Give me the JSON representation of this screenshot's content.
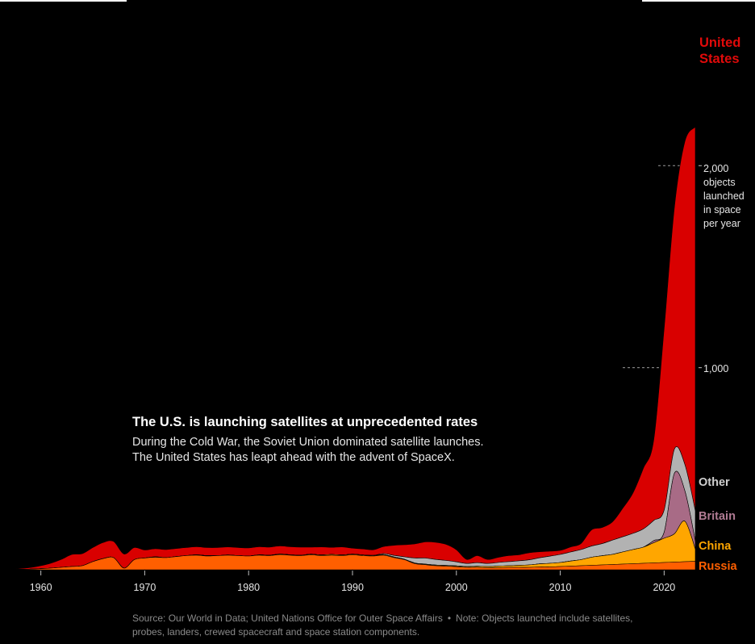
{
  "headline": "The U.S. is launching satellites at unprecedented rates",
  "subheadline": [
    "During the Cold War, the Soviet Union dominated satellite launches.",
    "The United States has leapt ahead with the advent of SpaceX."
  ],
  "source": "Source: Our World in Data; United Nations Office for Outer Space Affairs",
  "note": "Note: Objects launched include satellites, probes, landers, crewed spacecraft and space station components.",
  "colors": {
    "background": "#000000",
    "Russia": "#ff5f00",
    "China": "#ffa600",
    "Britain": "#a86b86",
    "Other": "#b2b2b2",
    "United States": "#d90000",
    "tick": "#bdbdbd",
    "footnote": "#8a8a8a"
  },
  "chart_data": {
    "type": "area",
    "stacking": "stacked streamgraph, baseline at bottom",
    "title": "The U.S. is launching satellites at unprecedented rates",
    "xlabel": "",
    "ylabel": "objects launched in space per year",
    "x_ticks": [
      "1960",
      "1970",
      "1980",
      "1990",
      "2000",
      "2010",
      "2020"
    ],
    "xlim": [
      1957,
      2023
    ],
    "y_ticks": [
      {
        "value": 1000,
        "label": "1,000"
      },
      {
        "value": 2000,
        "label": "2,000",
        "sublabel": [
          "objects",
          "launched",
          "in space",
          "per year"
        ]
      }
    ],
    "ylim": [
      0,
      2700
    ],
    "years": [
      1957,
      1958,
      1959,
      1960,
      1961,
      1962,
      1963,
      1964,
      1965,
      1966,
      1967,
      1968,
      1969,
      1970,
      1971,
      1972,
      1973,
      1974,
      1975,
      1976,
      1977,
      1978,
      1979,
      1980,
      1981,
      1982,
      1983,
      1984,
      1985,
      1986,
      1987,
      1988,
      1989,
      1990,
      1991,
      1992,
      1993,
      1994,
      1995,
      1996,
      1997,
      1998,
      1999,
      2000,
      2001,
      2002,
      2003,
      2004,
      2005,
      2006,
      2007,
      2008,
      2009,
      2010,
      2011,
      2012,
      2013,
      2014,
      2015,
      2016,
      2017,
      2018,
      2019,
      2020,
      2021,
      2022,
      2023
    ],
    "series": [
      {
        "name": "Russia",
        "label": "Russia",
        "values": [
          1,
          2,
          3,
          5,
          8,
          12,
          16,
          20,
          40,
          55,
          60,
          8,
          50,
          58,
          62,
          60,
          65,
          70,
          72,
          68,
          70,
          72,
          70,
          68,
          72,
          70,
          75,
          72,
          70,
          74,
          70,
          72,
          70,
          74,
          70,
          68,
          72,
          60,
          50,
          30,
          25,
          20,
          18,
          15,
          12,
          12,
          10,
          10,
          12,
          12,
          12,
          14,
          14,
          16,
          18,
          20,
          22,
          24,
          26,
          28,
          30,
          32,
          34,
          36,
          38,
          40,
          42
        ]
      },
      {
        "name": "China",
        "label": "China",
        "values": [
          0,
          0,
          0,
          0,
          0,
          0,
          0,
          0,
          0,
          0,
          0,
          0,
          0,
          0,
          2,
          0,
          0,
          0,
          2,
          2,
          0,
          1,
          0,
          0,
          2,
          2,
          3,
          2,
          2,
          3,
          3,
          4,
          3,
          3,
          3,
          3,
          3,
          3,
          2,
          3,
          3,
          3,
          3,
          4,
          4,
          5,
          6,
          8,
          8,
          10,
          12,
          15,
          18,
          20,
          25,
          30,
          40,
          45,
          50,
          60,
          70,
          80,
          100,
          120,
          140,
          200,
          60
        ]
      },
      {
        "name": "Britain",
        "label": "Britain",
        "values": [
          0,
          0,
          0,
          0,
          0,
          0,
          0,
          0,
          0,
          0,
          0,
          0,
          0,
          0,
          0,
          0,
          0,
          0,
          0,
          0,
          0,
          0,
          0,
          0,
          0,
          0,
          0,
          0,
          0,
          0,
          0,
          0,
          0,
          0,
          0,
          0,
          0,
          0,
          0,
          0,
          0,
          0,
          0,
          0,
          0,
          0,
          0,
          0,
          0,
          0,
          0,
          0,
          0,
          0,
          0,
          0,
          0,
          0,
          0,
          0,
          0,
          0,
          10,
          30,
          300,
          150,
          40
        ]
      },
      {
        "name": "Other",
        "label": "Other",
        "values": [
          0,
          0,
          0,
          0,
          0,
          0,
          0,
          0,
          0,
          0,
          0,
          0,
          0,
          0,
          0,
          0,
          0,
          0,
          0,
          0,
          0,
          0,
          0,
          0,
          0,
          0,
          0,
          0,
          0,
          0,
          0,
          0,
          0,
          0,
          0,
          0,
          5,
          8,
          12,
          25,
          30,
          28,
          25,
          20,
          15,
          18,
          15,
          18,
          20,
          22,
          25,
          30,
          35,
          40,
          45,
          50,
          55,
          60,
          70,
          75,
          80,
          90,
          100,
          110,
          120,
          130,
          150
        ]
      },
      {
        "name": "United States",
        "label": "United States",
        "values": [
          1,
          4,
          8,
          15,
          25,
          40,
          60,
          60,
          70,
          80,
          80,
          70,
          60,
          40,
          40,
          40,
          40,
          40,
          40,
          40,
          40,
          40,
          40,
          40,
          40,
          40,
          40,
          40,
          40,
          35,
          40,
          35,
          40,
          30,
          30,
          28,
          35,
          50,
          60,
          70,
          80,
          85,
          80,
          60,
          20,
          35,
          20,
          25,
          30,
          30,
          35,
          30,
          25,
          20,
          25,
          30,
          80,
          80,
          90,
          140,
          200,
          300,
          400,
          900,
          1200,
          1600,
          1900
        ]
      }
    ],
    "legend": "direct labels on right edge"
  }
}
